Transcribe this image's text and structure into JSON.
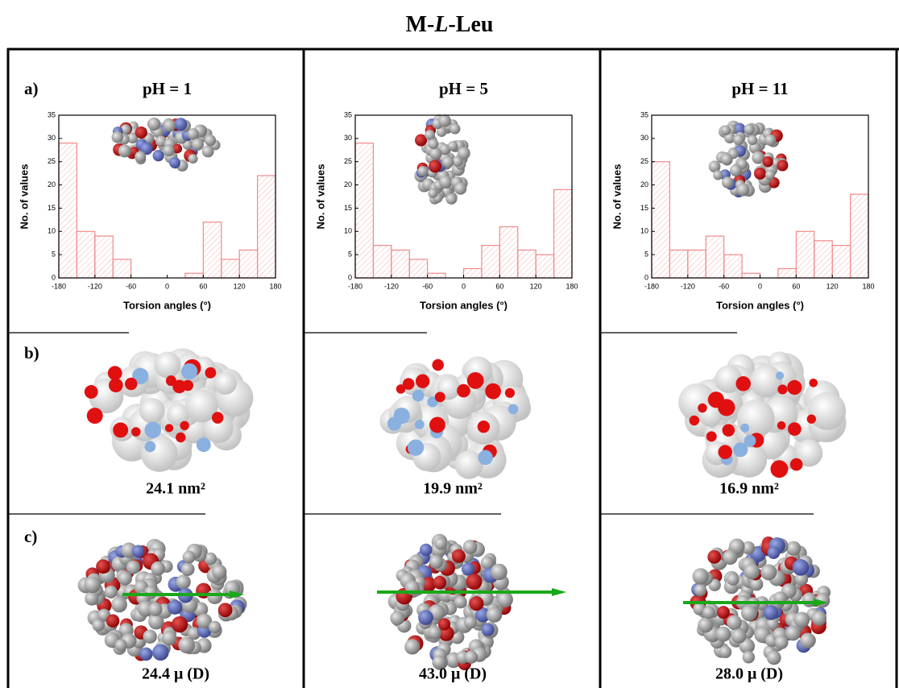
{
  "figure": {
    "title": [
      "M-",
      "L",
      "-Leu"
    ],
    "row_labels": [
      "a)",
      "b)",
      "c)"
    ],
    "surface_areas": [
      "24.1 nm²",
      "19.9 nm²",
      "16.9 nm²"
    ],
    "dipoles": [
      "24.4 μ (D)",
      "43.0 μ (D)",
      "28.0 μ (D)"
    ]
  },
  "chart_data": [
    {
      "type": "histogram",
      "title": "pH = 1",
      "x_label": "Torsion angles (°)",
      "y_label": "No. of values",
      "bins": [
        -180,
        -150,
        -120,
        -90,
        -60,
        -30,
        0,
        30,
        60,
        90,
        120,
        150,
        180
      ],
      "values": [
        29,
        10,
        9,
        4,
        0,
        0,
        0,
        1,
        12,
        4,
        6,
        22
      ],
      "color": "#f08a8a",
      "xlim": [
        -180,
        180
      ],
      "ylim": [
        0,
        35
      ],
      "xticks": [
        -180,
        -120,
        -60,
        0,
        60,
        120,
        180
      ],
      "yticks": [
        0,
        5,
        10,
        15,
        20,
        25,
        30,
        35
      ]
    },
    {
      "type": "histogram",
      "title": "pH = 5",
      "x_label": "Torsion angles (°)",
      "y_label": "No. of values",
      "bins": [
        -180,
        -150,
        -120,
        -90,
        -60,
        -30,
        0,
        30,
        60,
        90,
        120,
        150,
        180
      ],
      "values": [
        29,
        7,
        6,
        4,
        1,
        0,
        2,
        7,
        11,
        6,
        5,
        19
      ],
      "color": "#f08a8a",
      "xlim": [
        -180,
        180
      ],
      "ylim": [
        0,
        35
      ],
      "xticks": [
        -180,
        -120,
        -60,
        0,
        60,
        120,
        180
      ],
      "yticks": [
        0,
        5,
        10,
        15,
        20,
        25,
        30,
        35
      ]
    },
    {
      "type": "histogram",
      "title": "pH = 11",
      "x_label": "Torsion angles (°)",
      "y_label": "No. of values",
      "bins": [
        -180,
        -150,
        -120,
        -90,
        -60,
        -30,
        0,
        30,
        60,
        90,
        120,
        150,
        180
      ],
      "values": [
        25,
        6,
        6,
        9,
        5,
        1,
        0,
        2,
        10,
        8,
        7,
        18
      ],
      "color": "#f08a8a",
      "xlim": [
        -180,
        180
      ],
      "ylim": [
        0,
        35
      ],
      "xticks": [
        -180,
        -120,
        -60,
        0,
        60,
        120,
        180
      ],
      "yticks": [
        0,
        5,
        10,
        15,
        20,
        25,
        30,
        35
      ]
    }
  ]
}
